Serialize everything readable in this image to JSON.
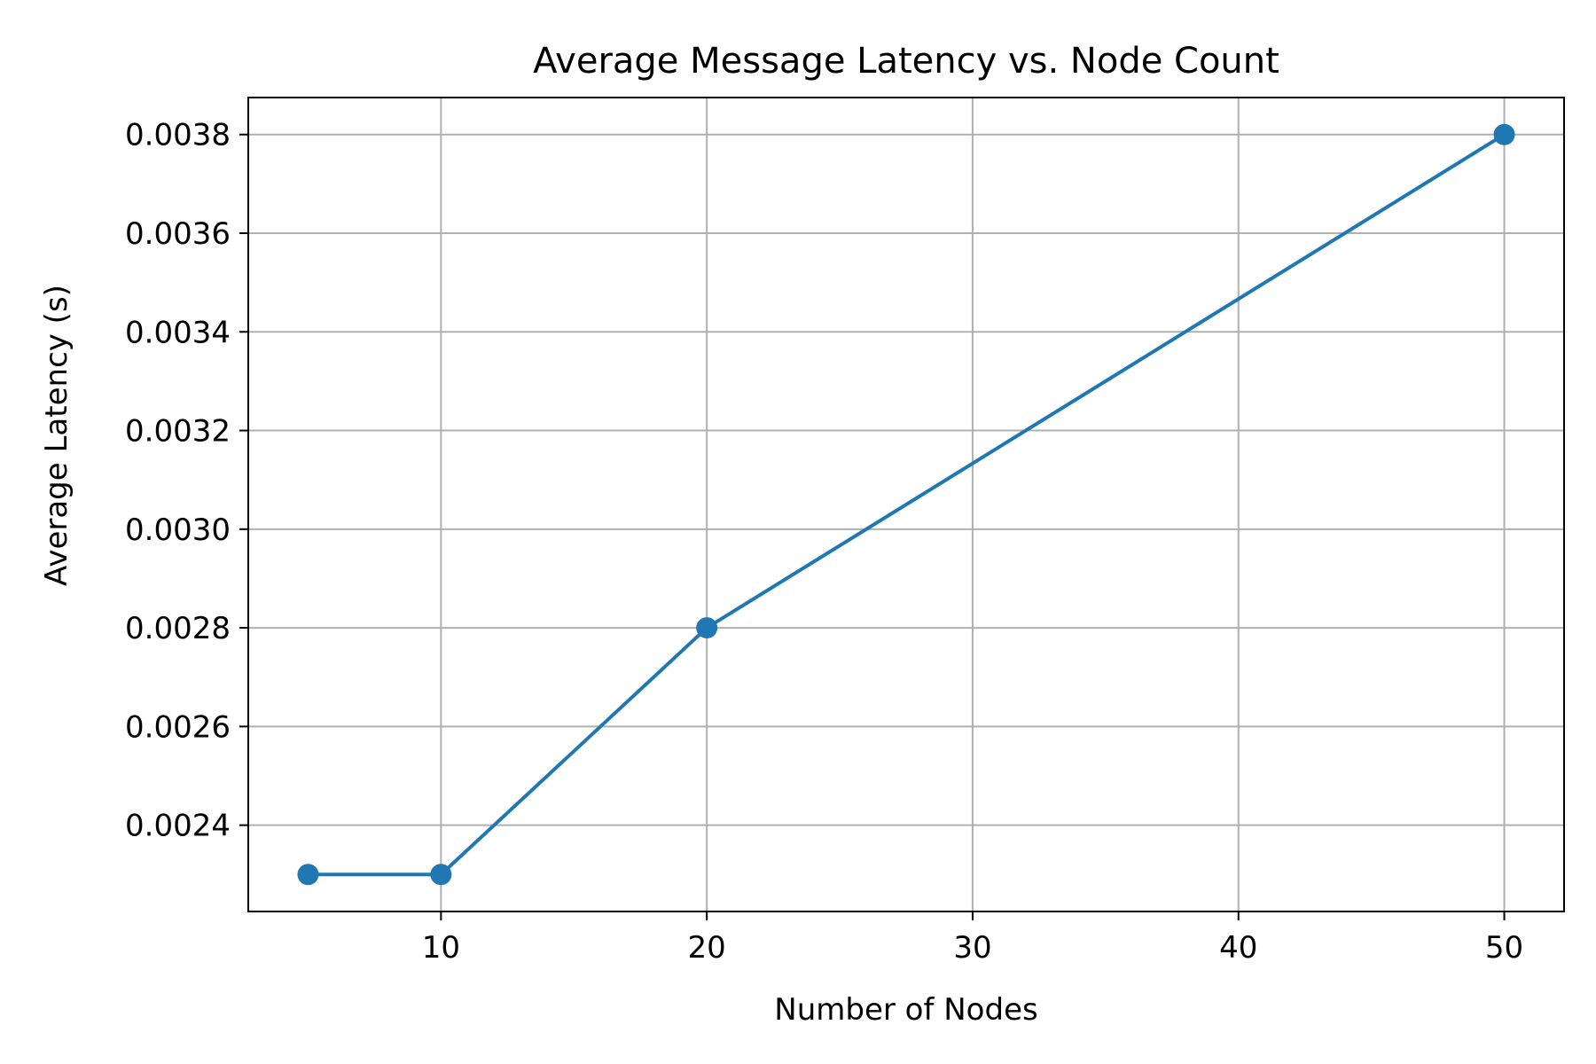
{
  "chart_data": {
    "type": "line",
    "title": "Average Message Latency vs. Node Count",
    "xlabel": "Number of Nodes",
    "ylabel": "Average Latency (s)",
    "xlim": [
      2.75,
      52.25
    ],
    "ylim": [
      0.002225,
      0.003875
    ],
    "x_ticks": [
      10,
      20,
      30,
      40,
      50
    ],
    "x_tick_labels": [
      "10",
      "20",
      "30",
      "40",
      "50"
    ],
    "y_ticks": [
      0.0024,
      0.0026,
      0.0028,
      0.003,
      0.0032,
      0.0034,
      0.0036,
      0.0038
    ],
    "y_tick_labels": [
      "0.0024",
      "0.0026",
      "0.0028",
      "0.0030",
      "0.0032",
      "0.0034",
      "0.0036",
      "0.0038"
    ],
    "grid": true,
    "series": [
      {
        "color": "#1f77b4",
        "marker": "circle",
        "points": [
          {
            "x": 5,
            "y": 0.0023
          },
          {
            "x": 10,
            "y": 0.0023
          },
          {
            "x": 20,
            "y": 0.0028
          },
          {
            "x": 50,
            "y": 0.0038
          }
        ]
      }
    ]
  }
}
